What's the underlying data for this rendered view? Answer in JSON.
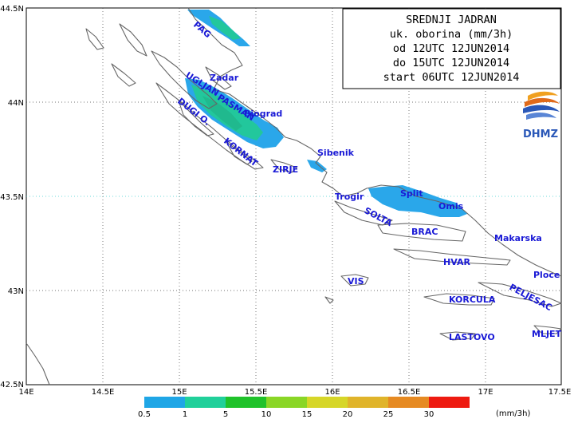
{
  "title_box": {
    "lines": [
      "SREDNJI JADRAN",
      "uk. oborina (mm/3h)",
      "od 12UTC 12JUN2014",
      "do 15UTC 12JUN2014",
      "start 06UTC 12JUN2014"
    ]
  },
  "logo": {
    "text": "DHMZ"
  },
  "axes": {
    "lon_ticks": [
      "14E",
      "14.5E",
      "15E",
      "15.5E",
      "16E",
      "16.5E",
      "17E",
      "17.5E"
    ],
    "lat_ticks": [
      "44.5N",
      "44N",
      "43.5N",
      "43N",
      "42.5N"
    ]
  },
  "places": [
    {
      "name": "PAG",
      "angle": 40
    },
    {
      "name": "Zadar",
      "angle": 0
    },
    {
      "name": "UGLJAN",
      "angle": 32
    },
    {
      "name": "PASMAN",
      "angle": 32
    },
    {
      "name": "DUGI O.",
      "angle": 38
    },
    {
      "name": "Biograd",
      "angle": 0
    },
    {
      "name": "KORNAT",
      "angle": 38
    },
    {
      "name": "Sibenik",
      "angle": 0
    },
    {
      "name": "ZIRJE",
      "angle": 0
    },
    {
      "name": "Trogir",
      "angle": 0
    },
    {
      "name": "Split",
      "angle": 0
    },
    {
      "name": "Omis",
      "angle": 0
    },
    {
      "name": "SOLTA",
      "angle": 28
    },
    {
      "name": "BRAC",
      "angle": 0
    },
    {
      "name": "Makarska",
      "angle": 0
    },
    {
      "name": "HVAR",
      "angle": 0
    },
    {
      "name": "Ploce",
      "angle": 0
    },
    {
      "name": "VIS",
      "angle": 0
    },
    {
      "name": "PELJESAC",
      "angle": 28
    },
    {
      "name": "KORCULA",
      "angle": 0
    },
    {
      "name": "LASTOVO",
      "angle": 0
    },
    {
      "name": "MLJET",
      "angle": 0
    }
  ],
  "legend": {
    "unit": "(mm/3h)",
    "thresholds": [
      "0.5",
      "1",
      "5",
      "10",
      "15",
      "20",
      "25",
      "30"
    ],
    "colors": [
      "#1fa6e6",
      "#20d09a",
      "#1fc22a",
      "#8ad626",
      "#d6d628",
      "#e0b42a",
      "#e68a22",
      "#ee1a10"
    ]
  },
  "precip_colors": {
    "light": "#2aa7ea",
    "medium": "#22c79c",
    "grid_dotted": "#000000",
    "highlight_line": "#4fd9d0"
  }
}
